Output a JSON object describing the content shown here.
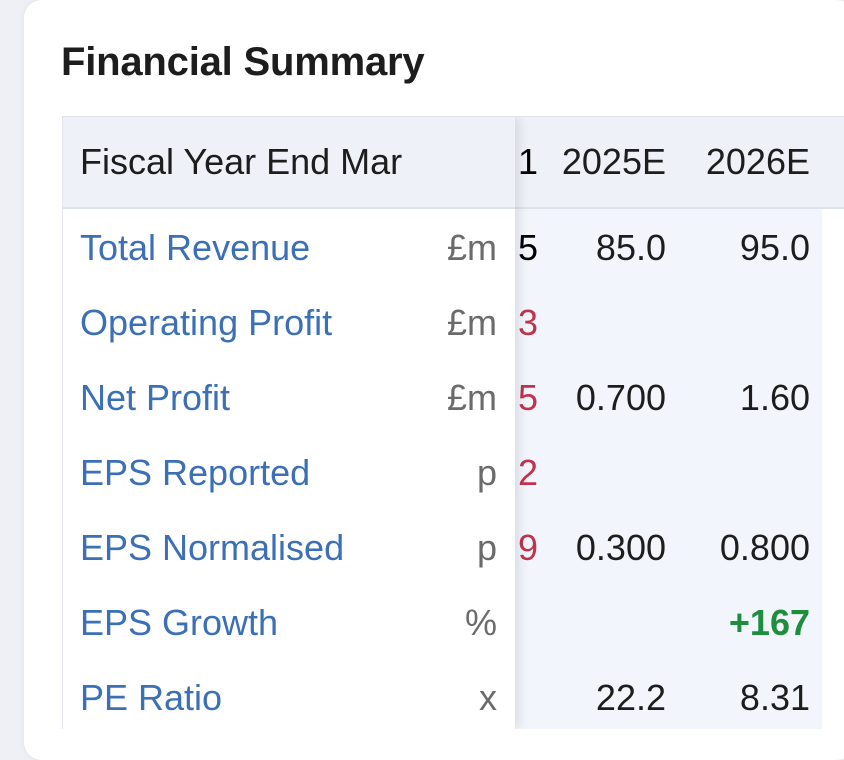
{
  "title": "Financial Summary",
  "table": {
    "header_label": "Fiscal Year End Mar",
    "year_columns": [
      "2025E",
      "2026E"
    ],
    "partial_header": "1",
    "rows": [
      {
        "label": "Total Revenue",
        "unit": "£m",
        "partial": "5",
        "partial_tone": "neutral",
        "values": [
          "85.0",
          "95.0"
        ]
      },
      {
        "label": "Operating Profit",
        "unit": "£m",
        "partial": "3",
        "partial_tone": "negative",
        "values": [
          "",
          ""
        ]
      },
      {
        "label": "Net Profit",
        "unit": "£m",
        "partial": "5",
        "partial_tone": "negative",
        "values": [
          "0.700",
          "1.60"
        ]
      },
      {
        "label": "EPS Reported",
        "unit": "p",
        "partial": "2",
        "partial_tone": "negative",
        "values": [
          "",
          ""
        ]
      },
      {
        "label": "EPS Normalised",
        "unit": "p",
        "partial": "9",
        "partial_tone": "negative",
        "values": [
          "0.300",
          "0.800"
        ]
      },
      {
        "label": "EPS Growth",
        "unit": "%",
        "partial": "",
        "partial_tone": "neutral",
        "values": [
          "",
          "+167"
        ]
      },
      {
        "label": "PE Ratio",
        "unit": "x",
        "partial": "",
        "partial_tone": "neutral",
        "values": [
          "22.2",
          "8.31"
        ]
      }
    ]
  },
  "colors": {
    "link": "#3b6fb6",
    "negative": "#c0334d",
    "positive": "#1e8e3e"
  }
}
